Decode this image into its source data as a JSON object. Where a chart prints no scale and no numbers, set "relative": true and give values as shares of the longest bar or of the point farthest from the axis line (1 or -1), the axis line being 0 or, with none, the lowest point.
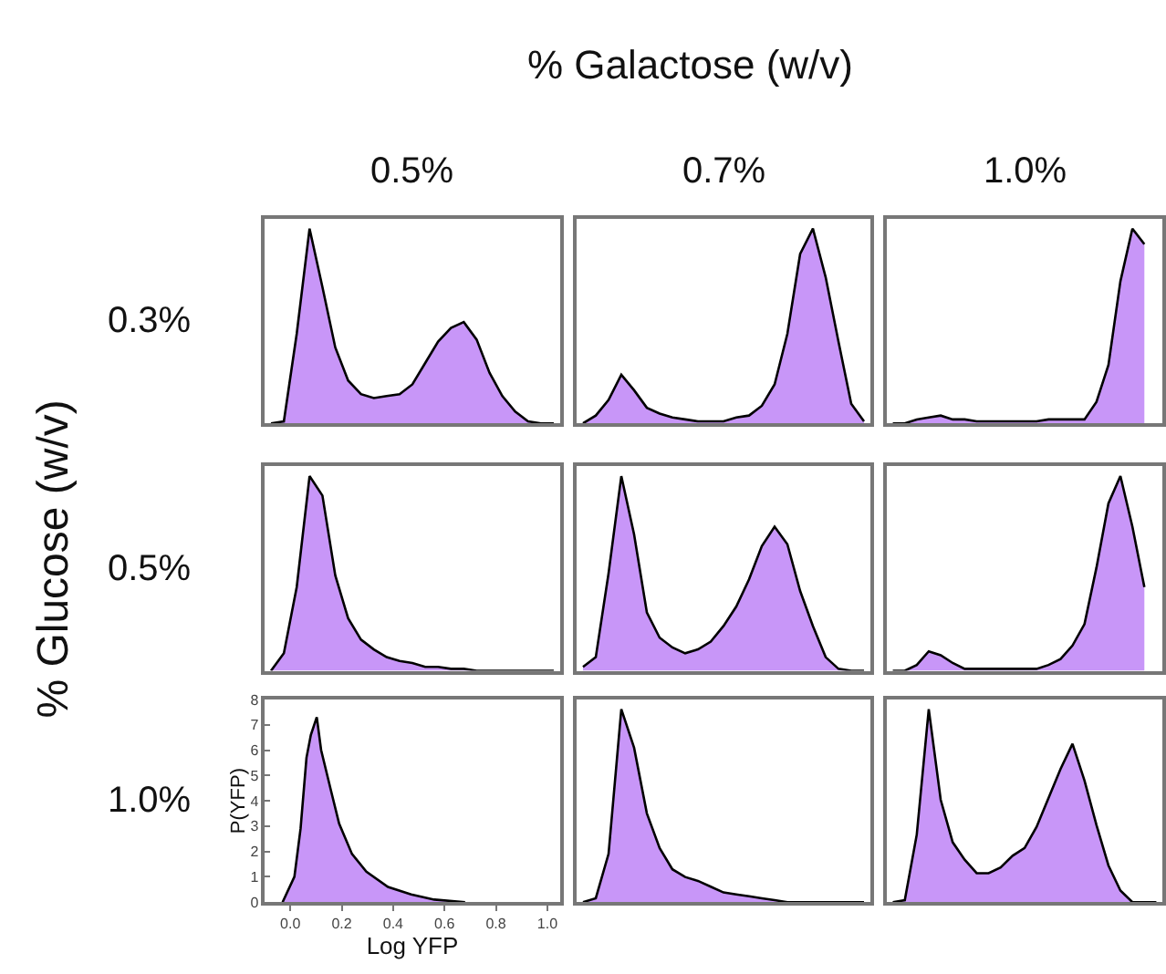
{
  "chart_data": [
    {
      "type": "other",
      "title": "% Galactose (w/v)",
      "ylabel": "% Glucose (w/v)",
      "annotations": [
        "0.5%",
        "0.7%",
        "1.0%",
        "0.3%",
        "0.5%",
        "1.0%"
      ]
    },
    {
      "type": "area",
      "relative": true,
      "categories": [
        null,
        null,
        null,
        null,
        null,
        null,
        null,
        null,
        null,
        null,
        null,
        null,
        null,
        null,
        null,
        null,
        null,
        null,
        null,
        null,
        null,
        null,
        null
      ],
      "series": [
        {
          "color": "#c896f8",
          "values": [
            0,
            0.01,
            0.46,
            1,
            0.7,
            0.39,
            0.22,
            0.15,
            0.13,
            0.14,
            0.15,
            0.2,
            0.31,
            0.42,
            0.49,
            0.52,
            0.43,
            0.26,
            0.14,
            0.06,
            0.01,
            0,
            0
          ]
        }
      ]
    },
    {
      "type": "area",
      "relative": true,
      "categories": [
        null,
        null,
        null,
        null,
        null,
        null,
        null,
        null,
        null,
        null,
        null,
        null,
        null,
        null,
        null,
        null,
        null,
        null,
        null,
        null,
        null,
        null,
        null
      ],
      "series": [
        {
          "color": "#c896f8",
          "values": [
            0,
            0.04,
            0.12,
            0.25,
            0.17,
            0.08,
            0.05,
            0.03,
            0.02,
            0.01,
            0.01,
            0.01,
            0.03,
            0.04,
            0.09,
            0.2,
            0.46,
            0.87,
            1,
            0.75,
            0.42,
            0.1,
            0.01
          ]
        }
      ]
    },
    {
      "type": "area",
      "relative": true,
      "categories": [
        null,
        null,
        null,
        null,
        null,
        null,
        null,
        null,
        null,
        null,
        null,
        null,
        null,
        null,
        null,
        null,
        null,
        null,
        null,
        null,
        null,
        null,
        null
      ],
      "series": [
        {
          "color": "#c896f8",
          "values": [
            0,
            0,
            0.02,
            0.03,
            0.04,
            0.02,
            0.02,
            0.01,
            0.01,
            0.01,
            0.01,
            0.01,
            0.01,
            0.02,
            0.02,
            0.02,
            0.02,
            0.11,
            0.3,
            0.73,
            1,
            0.92,
            null
          ]
        }
      ]
    },
    {
      "type": "area",
      "relative": true,
      "categories": [
        null,
        null,
        null,
        null,
        null,
        null,
        null,
        null,
        null,
        null,
        null,
        null,
        null,
        null,
        null,
        null,
        null,
        null,
        null,
        null,
        null,
        null,
        null
      ],
      "series": [
        {
          "color": "#c896f8",
          "values": [
            0,
            0.09,
            0.43,
            1,
            0.9,
            0.49,
            0.27,
            0.16,
            0.11,
            0.07,
            0.05,
            0.04,
            0.02,
            0.02,
            0.01,
            0.01,
            0,
            0,
            0,
            0,
            0,
            0,
            0
          ]
        }
      ]
    },
    {
      "type": "area",
      "relative": true,
      "categories": [
        null,
        null,
        null,
        null,
        null,
        null,
        null,
        null,
        null,
        null,
        null,
        null,
        null,
        null,
        null,
        null,
        null,
        null,
        null,
        null,
        null,
        null,
        null
      ],
      "series": [
        {
          "color": "#c896f8",
          "values": [
            0.02,
            0.07,
            0.5,
            1,
            0.7,
            0.3,
            0.17,
            0.12,
            0.09,
            0.11,
            0.15,
            0.23,
            0.33,
            0.47,
            0.64,
            0.74,
            0.65,
            0.41,
            0.23,
            0.07,
            0.01,
            0,
            0
          ]
        }
      ]
    },
    {
      "type": "area",
      "relative": true,
      "categories": [
        null,
        null,
        null,
        null,
        null,
        null,
        null,
        null,
        null,
        null,
        null,
        null,
        null,
        null,
        null,
        null,
        null,
        null,
        null,
        null,
        null,
        null,
        null
      ],
      "series": [
        {
          "color": "#c896f8",
          "values": [
            0,
            0,
            0.03,
            0.1,
            0.08,
            0.04,
            0.01,
            0.01,
            0.01,
            0.01,
            0.01,
            0.01,
            0.01,
            0.03,
            0.06,
            0.13,
            0.24,
            0.53,
            0.86,
            1,
            0.74,
            0.43,
            null
          ]
        }
      ]
    },
    {
      "type": "area",
      "xlabel": "Log YFP",
      "ylabel": "P(YFP)",
      "xlim": [
        -0.1,
        1.05
      ],
      "ylim": [
        0,
        8
      ],
      "xticks": [
        {
          "value": 0,
          "label": "0.0"
        },
        0.2,
        0.4,
        0.6,
        0.8,
        {
          "value": 1,
          "label": "1.0"
        }
      ],
      "yticks": [
        0,
        1,
        2,
        3,
        4,
        5,
        6,
        7,
        8
      ],
      "series": [
        {
          "color": "#c896f8",
          "x": [
            -0.03,
            0.016,
            0.04,
            0.063,
            0.08,
            0.103,
            0.12,
            0.156,
            0.19,
            0.24,
            0.296,
            0.38,
            0.47,
            0.56,
            0.68
          ],
          "values": [
            0,
            1.0,
            2.9,
            5.7,
            6.6,
            7.3,
            6.0,
            4.5,
            3.1,
            1.9,
            1.2,
            0.6,
            0.3,
            0.1,
            0
          ]
        }
      ]
    },
    {
      "type": "area",
      "relative": true,
      "categories": [
        null,
        null,
        null,
        null,
        null,
        null,
        null,
        null,
        null,
        null,
        null,
        null,
        null,
        null,
        null,
        null,
        null,
        null,
        null,
        null,
        null,
        null,
        null
      ],
      "series": [
        {
          "color": "#c896f8",
          "values": [
            0,
            0.02,
            0.25,
            1,
            0.8,
            0.46,
            0.28,
            0.17,
            0.13,
            0.11,
            0.08,
            0.05,
            0.04,
            0.03,
            0.02,
            0.01,
            0,
            0,
            0,
            0,
            0,
            0,
            0
          ]
        }
      ]
    },
    {
      "type": "area",
      "relative": true,
      "categories": [
        null,
        null,
        null,
        null,
        null,
        null,
        null,
        null,
        null,
        null,
        null,
        null,
        null,
        null,
        null,
        null,
        null,
        null,
        null,
        null,
        null,
        null,
        null
      ],
      "series": [
        {
          "color": "#c896f8",
          "values": [
            0,
            0.01,
            0.35,
            1,
            0.53,
            0.31,
            0.22,
            0.15,
            0.15,
            0.18,
            0.24,
            0.28,
            0.39,
            0.54,
            0.69,
            0.82,
            0.63,
            0.4,
            0.19,
            0.06,
            0,
            0,
            0
          ]
        }
      ]
    }
  ]
}
